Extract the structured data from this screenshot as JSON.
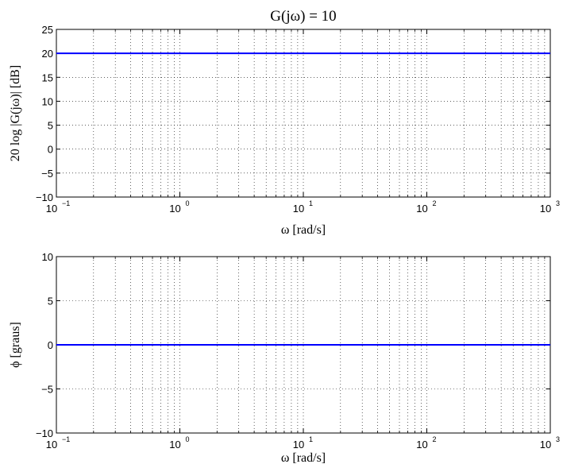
{
  "chart_data": [
    {
      "type": "line",
      "title": "G(jω) = 10",
      "xlabel": "ω [rad/s]",
      "ylabel": "20 log |G(jω)| [dB]",
      "x_scale": "log",
      "xlim": [
        0.1,
        1000
      ],
      "ylim": [
        -10,
        25
      ],
      "yticks": [
        -10,
        -5,
        0,
        5,
        10,
        15,
        20,
        25
      ],
      "xticks": [
        {
          "base": "10",
          "exp": "−1"
        },
        {
          "base": "10",
          "exp": "0"
        },
        {
          "base": "10",
          "exp": "1"
        },
        {
          "base": "10",
          "exp": "2"
        },
        {
          "base": "10",
          "exp": "3"
        }
      ],
      "grid": true,
      "series": [
        {
          "x": [
            0.1,
            1000
          ],
          "y": [
            20,
            20
          ],
          "color": "#0000ff"
        }
      ]
    },
    {
      "type": "line",
      "title": "",
      "xlabel": "ω [rad/s]",
      "ylabel": "ϕ [graus]",
      "x_scale": "log",
      "xlim": [
        0.1,
        1000
      ],
      "ylim": [
        -10,
        10
      ],
      "yticks": [
        -10,
        -5,
        0,
        5,
        10
      ],
      "xticks": [
        {
          "base": "10",
          "exp": "−1"
        },
        {
          "base": "10",
          "exp": "0"
        },
        {
          "base": "10",
          "exp": "1"
        },
        {
          "base": "10",
          "exp": "2"
        },
        {
          "base": "10",
          "exp": "3"
        }
      ],
      "grid": true,
      "series": [
        {
          "x": [
            0.1,
            1000
          ],
          "y": [
            0,
            0
          ],
          "color": "#0000ff"
        }
      ]
    }
  ]
}
